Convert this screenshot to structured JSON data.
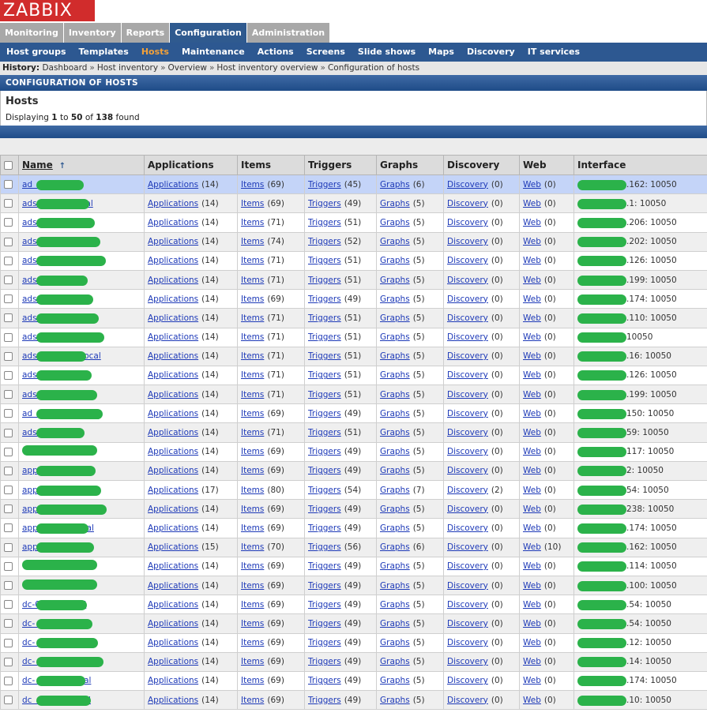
{
  "logo": "ZABBIX",
  "main_menu": [
    "Monitoring",
    "Inventory",
    "Reports",
    "Configuration",
    "Administration"
  ],
  "main_menu_active": 3,
  "sub_menu": [
    "Host groups",
    "Templates",
    "Hosts",
    "Maintenance",
    "Actions",
    "Screens",
    "Slide shows",
    "Maps",
    "Discovery",
    "IT services"
  ],
  "sub_menu_active": 2,
  "history": {
    "label": "History:",
    "items": [
      "Dashboard",
      "Host inventory",
      "Overview",
      "Host inventory overview",
      "Configuration of hosts"
    ],
    "separator": "»"
  },
  "config_title": "CONFIGURATION OF HOSTS",
  "hosts_box": {
    "title": "Hosts",
    "displaying_prefix": "Displaying",
    "from": "1",
    "to_word": "to",
    "to": "50",
    "of_word": "of",
    "total": "138",
    "found": "found"
  },
  "table": {
    "headers": [
      "Name",
      "Applications",
      "Items",
      "Triggers",
      "Graphs",
      "Discovery",
      "Web",
      "Interface"
    ],
    "sort_arrow": "↑",
    "link_labels": {
      "applications": "Applications",
      "items": "Items",
      "triggers": "Triggers",
      "graphs": "Graphs",
      "discovery": "Discovery",
      "web": "Web"
    },
    "rows": [
      {
        "name": "ad          .local",
        "apps": "(14)",
        "items": "(69)",
        "triggers": "(45)",
        "graphs": "(6)",
        "discovery": "(0)",
        "web": "(0)",
        "iface": ".162: 10050",
        "selected": true
      },
      {
        "name": "ads          .1.local",
        "apps": "(14)",
        "items": "(69)",
        "triggers": "(49)",
        "graphs": "(5)",
        "discovery": "(0)",
        "web": "(0)",
        "iface": ".1: 10050"
      },
      {
        "name": "ads       .local",
        "apps": "(14)",
        "items": "(71)",
        "triggers": "(51)",
        "graphs": "(5)",
        "discovery": "(0)",
        "web": "(0)",
        "iface": ".206: 10050"
      },
      {
        "name": "ads          .local",
        "apps": "(14)",
        "items": "(74)",
        "triggers": "(52)",
        "graphs": "(5)",
        "discovery": "(0)",
        "web": "(0)",
        "iface": ".202: 10050"
      },
      {
        "name": "ads           .local",
        "apps": "(14)",
        "items": "(71)",
        "triggers": "(51)",
        "graphs": "(5)",
        "discovery": "(0)",
        "web": "(0)",
        "iface": ".126: 10050"
      },
      {
        "name": "ads        .local",
        "apps": "(14)",
        "items": "(71)",
        "triggers": "(51)",
        "graphs": "(5)",
        "discovery": "(0)",
        "web": "(0)",
        "iface": ".199: 10050"
      },
      {
        "name": "ads            .local",
        "apps": "(14)",
        "items": "(69)",
        "triggers": "(49)",
        "graphs": "(5)",
        "discovery": "(0)",
        "web": "(0)",
        "iface": ".174: 10050"
      },
      {
        "name": "ads         .local",
        "apps": "(14)",
        "items": "(71)",
        "triggers": "(51)",
        "graphs": "(5)",
        "discovery": "(0)",
        "web": "(0)",
        "iface": ".110: 10050"
      },
      {
        "name": "ads        .local",
        "apps": "(14)",
        "items": "(71)",
        "triggers": "(51)",
        "graphs": "(5)",
        "discovery": "(0)",
        "web": "(0)",
        "iface": "10050"
      },
      {
        "name": "ads                .local",
        "apps": "(14)",
        "items": "(71)",
        "triggers": "(51)",
        "graphs": "(5)",
        "discovery": "(0)",
        "web": "(0)",
        "iface": ".16: 10050"
      },
      {
        "name": "ads        .local",
        "apps": "(14)",
        "items": "(71)",
        "triggers": "(51)",
        "graphs": "(5)",
        "discovery": "(0)",
        "web": "(0)",
        "iface": ".126: 10050"
      },
      {
        "name": "ads         .local",
        "apps": "(14)",
        "items": "(71)",
        "triggers": "(51)",
        "graphs": "(5)",
        "discovery": "(0)",
        "web": "(0)",
        "iface": ".199: 10050"
      },
      {
        "name": "ad         .local",
        "apps": "(14)",
        "items": "(69)",
        "triggers": "(49)",
        "graphs": "(5)",
        "discovery": "(0)",
        "web": "(0)",
        "iface": "150: 10050"
      },
      {
        "name": "ads       .local",
        "apps": "(14)",
        "items": "(71)",
        "triggers": "(51)",
        "graphs": "(5)",
        "discovery": "(0)",
        "web": "(0)",
        "iface": "59: 10050"
      },
      {
        "name": "",
        "apps": "(14)",
        "items": "(69)",
        "triggers": "(49)",
        "graphs": "(5)",
        "discovery": "(0)",
        "web": "(0)",
        "iface": "117: 10050"
      },
      {
        "name": "app          .local",
        "apps": "(14)",
        "items": "(69)",
        "triggers": "(49)",
        "graphs": "(5)",
        "discovery": "(0)",
        "web": "(0)",
        "iface": "2: 10050"
      },
      {
        "name": "app-         .local",
        "apps": "(17)",
        "items": "(80)",
        "triggers": "(54)",
        "graphs": "(7)",
        "discovery": "(2)",
        "web": "(0)",
        "iface": "54: 10050"
      },
      {
        "name": "app-              .local",
        "apps": "(14)",
        "items": "(69)",
        "triggers": "(49)",
        "graphs": "(5)",
        "discovery": "(0)",
        "web": "(0)",
        "iface": "238: 10050"
      },
      {
        "name": "app             .local",
        "apps": "(14)",
        "items": "(69)",
        "triggers": "(49)",
        "graphs": "(5)",
        "discovery": "(0)",
        "web": "(0)",
        "iface": ".174: 10050"
      },
      {
        "name": "app          .local",
        "apps": "(15)",
        "items": "(70)",
        "triggers": "(56)",
        "graphs": "(6)",
        "discovery": "(0)",
        "web": "(10)",
        "iface": ".162: 10050"
      },
      {
        "name": "",
        "apps": "(14)",
        "items": "(69)",
        "triggers": "(49)",
        "graphs": "(5)",
        "discovery": "(0)",
        "web": "(0)",
        "iface": ".114: 10050"
      },
      {
        "name": "",
        "apps": "(14)",
        "items": "(69)",
        "triggers": "(49)",
        "graphs": "(5)",
        "discovery": "(0)",
        "web": "(0)",
        "iface": ".100: 10050"
      },
      {
        "name": "dc-01-      .local",
        "apps": "(14)",
        "items": "(69)",
        "triggers": "(49)",
        "graphs": "(5)",
        "discovery": "(0)",
        "web": "(0)",
        "iface": ".54: 10050"
      },
      {
        "name": "dc-        .local",
        "apps": "(14)",
        "items": "(69)",
        "triggers": "(49)",
        "graphs": "(5)",
        "discovery": "(0)",
        "web": "(0)",
        "iface": ".54: 10050"
      },
      {
        "name": "dc-             .local",
        "apps": "(14)",
        "items": "(69)",
        "triggers": "(49)",
        "graphs": "(5)",
        "discovery": "(0)",
        "web": "(0)",
        "iface": ".12: 10050"
      },
      {
        "name": "dc-             .local",
        "apps": "(14)",
        "items": "(69)",
        "triggers": "(49)",
        "graphs": "(5)",
        "discovery": "(0)",
        "web": "(0)",
        "iface": ".14: 10050"
      },
      {
        "name": "dc-             .local",
        "apps": "(14)",
        "items": "(69)",
        "triggers": "(49)",
        "graphs": "(5)",
        "discovery": "(0)",
        "web": "(0)",
        "iface": ".174: 10050"
      },
      {
        "name": "dc              .local",
        "apps": "(14)",
        "items": "(69)",
        "triggers": "(49)",
        "graphs": "(5)",
        "discovery": "(0)",
        "web": "(0)",
        "iface": ".10: 10050"
      }
    ]
  },
  "colors": {
    "nav_blue": "#2d5891",
    "active_submenu": "#f2a13a",
    "logo_red": "#d12c2c",
    "redaction_green": "#2bb24a",
    "selected_row": "#c4d4f8",
    "link": "#1e3ab8"
  }
}
